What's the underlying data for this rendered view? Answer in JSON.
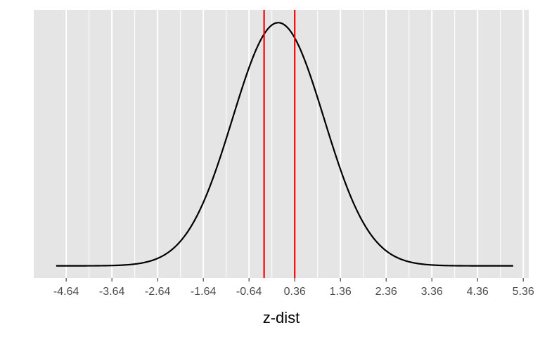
{
  "chart_data": {
    "type": "line",
    "xlabel": "z-dist",
    "ylabel": "",
    "title": "",
    "xlim": [
      -5.35,
      5.48
    ],
    "ylim": [
      -0.02,
      0.42
    ],
    "x_ticks": [
      -4.64,
      -3.64,
      -2.64,
      -1.64,
      -0.64,
      0.36,
      1.36,
      2.36,
      3.36,
      4.36,
      5.36
    ],
    "x_tick_labels": [
      "-4.64",
      "-3.64",
      "-2.64",
      "-1.64",
      "-0.64",
      "0.36",
      "1.36",
      "2.36",
      "3.36",
      "4.36",
      "5.36"
    ],
    "curve": {
      "distribution": "normal",
      "mean": 0,
      "sd": 1,
      "x_range": [
        -4.86,
        5.14
      ],
      "color": "#000000"
    },
    "vlines": [
      {
        "x": -0.31,
        "color": "#ff0000"
      },
      {
        "x": 0.36,
        "color": "#ff0000"
      }
    ],
    "panel_background": "#e5e5e5",
    "grid": true,
    "grid_color": "#ffffff",
    "legend": "none"
  }
}
